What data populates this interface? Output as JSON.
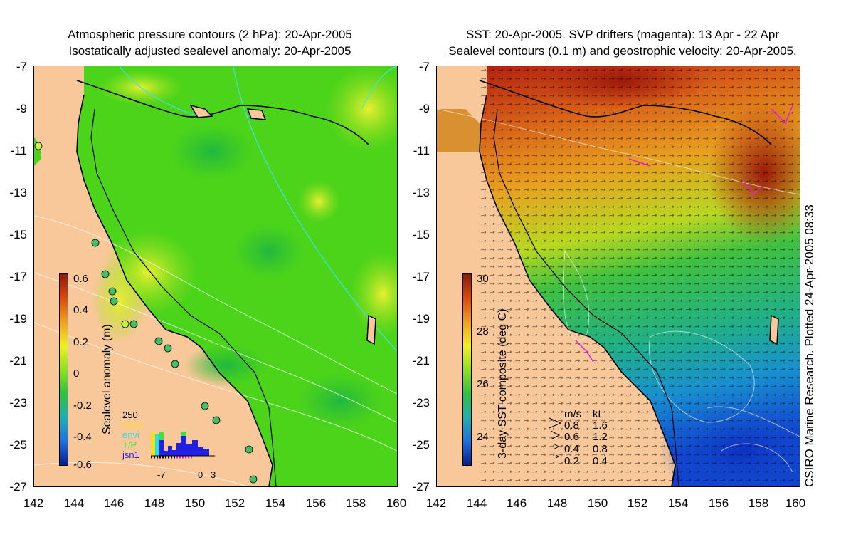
{
  "left_panel": {
    "title_line1": "Atmospheric pressure contours (2 hPa): 20-Apr-2005",
    "title_line2": "Isostatically adjusted sealevel anomaly: 20-Apr-2005",
    "colorbar": {
      "label": "Sealevel anomaly (m)",
      "ticks": [
        "0.6",
        "0.4",
        "0.2",
        "0",
        "-0.2",
        "-0.4",
        "-0.6"
      ]
    },
    "histogram": {
      "ymax_label": "250",
      "legend": [
        {
          "name": "GFO",
          "color": "#f0e020"
        },
        {
          "name": "envi",
          "color": "#30d8e0"
        },
        {
          "name": "T/P",
          "color": "#40e040"
        },
        {
          "name": "jsn1",
          "color": "#2020e0"
        }
      ],
      "xticks": [
        "-7",
        "0",
        "3"
      ]
    }
  },
  "right_panel": {
    "title_line1": "SST: 20-Apr-2005. SVP drifters (magenta): 13 Apr - 22 Apr",
    "title_line2": "Sealevel contours (0.1 m) and geostrophic velocity: 20-Apr-2005.",
    "colorbar": {
      "label": "3-day SST composite (deg C)",
      "ticks": [
        "30",
        "28",
        "26",
        "24"
      ]
    },
    "velocity_key": {
      "header_ms": "m/s",
      "header_kt": "kt",
      "rows": [
        {
          "ms": "0.8",
          "kt": "1.6"
        },
        {
          "ms": "0.6",
          "kt": "1.2"
        },
        {
          "ms": "0.4",
          "kt": "0.8"
        },
        {
          "ms": "0.2",
          "kt": "0.4"
        }
      ]
    },
    "credit": "CSIRO Marine Research. Plotted 24-Apr-2005 08:33"
  },
  "axes": {
    "y_ticks": [
      "-7",
      "-9",
      "-11",
      "-13",
      "-15",
      "-17",
      "-19",
      "-21",
      "-23",
      "-25",
      "-27"
    ],
    "x_ticks": [
      "142",
      "144",
      "146",
      "148",
      "150",
      "152",
      "154",
      "156",
      "158",
      "160"
    ]
  },
  "colors": {
    "land": "#f9c89a",
    "sea_anomaly_base": "#4cd41a",
    "drifters": "#e020e0"
  }
}
